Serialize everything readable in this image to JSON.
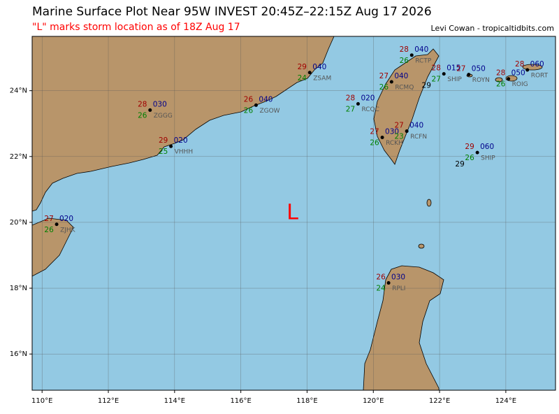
{
  "title": "Marine Surface Plot Near 95W INVEST 20:45Z–22:15Z Aug 17 2026",
  "subtitle": "\"L\" marks storm location as of 18Z Aug 17",
  "credit": "Levi Cowan - tropicaltidbits.com",
  "map": {
    "xlim": [
      109.7,
      125.5
    ],
    "ylim": [
      14.9,
      25.65
    ],
    "grid": true,
    "land_color": "#b8956a",
    "sea_color": "#93c9e3",
    "xticks": [
      {
        "value": 110,
        "label": "110°E"
      },
      {
        "value": 112,
        "label": "112°E"
      },
      {
        "value": 114,
        "label": "114°E"
      },
      {
        "value": 116,
        "label": "116°E"
      },
      {
        "value": 118,
        "label": "118°E"
      },
      {
        "value": 120,
        "label": "120°E"
      },
      {
        "value": 122,
        "label": "122°E"
      },
      {
        "value": 124,
        "label": "124°E"
      }
    ],
    "yticks": [
      {
        "value": 16,
        "label": "16°N"
      },
      {
        "value": 18,
        "label": "18°N"
      },
      {
        "value": 20,
        "label": "20°N"
      },
      {
        "value": 22,
        "label": "22°N"
      },
      {
        "value": 24,
        "label": "24°N"
      }
    ]
  },
  "low": {
    "label": "L",
    "lon": 117.56,
    "lat": 20.28,
    "color": "#ff0000"
  },
  "stations": [
    {
      "id": "RCTP",
      "lon": 121.16,
      "lat": 25.08,
      "temp": 28,
      "code": "040",
      "dewpoint": 26
    },
    {
      "id": "RCMQ",
      "lon": 120.55,
      "lat": 24.27,
      "temp": 27,
      "code": "040",
      "dewpoint": 26
    },
    {
      "id": "SHIP",
      "lon": 122.13,
      "lat": 24.51,
      "temp": 28,
      "code": "015",
      "dewpoint": 27,
      "extra": 29
    },
    {
      "id": "ROYN",
      "lon": 122.88,
      "lat": 24.49,
      "temp": 27,
      "code": "050"
    },
    {
      "id": "ROIG",
      "lon": 124.08,
      "lat": 24.36,
      "temp": 28,
      "code": "050",
      "dewpoint": 26
    },
    {
      "id": "RORT",
      "lon": 124.65,
      "lat": 24.63,
      "temp": 28,
      "code": "060"
    },
    {
      "id": "ZSAM",
      "lon": 118.08,
      "lat": 24.55,
      "temp": 29,
      "code": "040",
      "dewpoint": 24
    },
    {
      "id": "ZGOW",
      "lon": 116.46,
      "lat": 23.56,
      "temp": 26,
      "code": "040",
      "dewpoint": 26
    },
    {
      "id": "ZGGG",
      "lon": 113.26,
      "lat": 23.41,
      "temp": 28,
      "code": "030",
      "dewpoint": 26
    },
    {
      "id": "VHHH",
      "lon": 113.89,
      "lat": 22.31,
      "temp": 29,
      "code": "020",
      "dewpoint": 25
    },
    {
      "id": "RCQC",
      "lon": 119.54,
      "lat": 23.6,
      "temp": 28,
      "code": "020",
      "dewpoint": 27
    },
    {
      "id": "RCKH",
      "lon": 120.27,
      "lat": 22.58,
      "temp": 27,
      "code": "030",
      "dewpoint": 26
    },
    {
      "id": "RCFN",
      "lon": 121.01,
      "lat": 22.77,
      "temp": 27,
      "code": "040",
      "dewpoint": 23
    },
    {
      "id": "SHIP",
      "lon": 123.14,
      "lat": 22.12,
      "temp": 29,
      "code": "060",
      "dewpoint": 26,
      "extra": 29
    },
    {
      "id": "ZJHK",
      "lon": 110.44,
      "lat": 19.94,
      "temp": 27,
      "code": "020",
      "dewpoint": 26
    },
    {
      "id": "RPLI",
      "lon": 120.46,
      "lat": 18.16,
      "temp": 26,
      "code": "030",
      "dewpoint": 24
    }
  ]
}
